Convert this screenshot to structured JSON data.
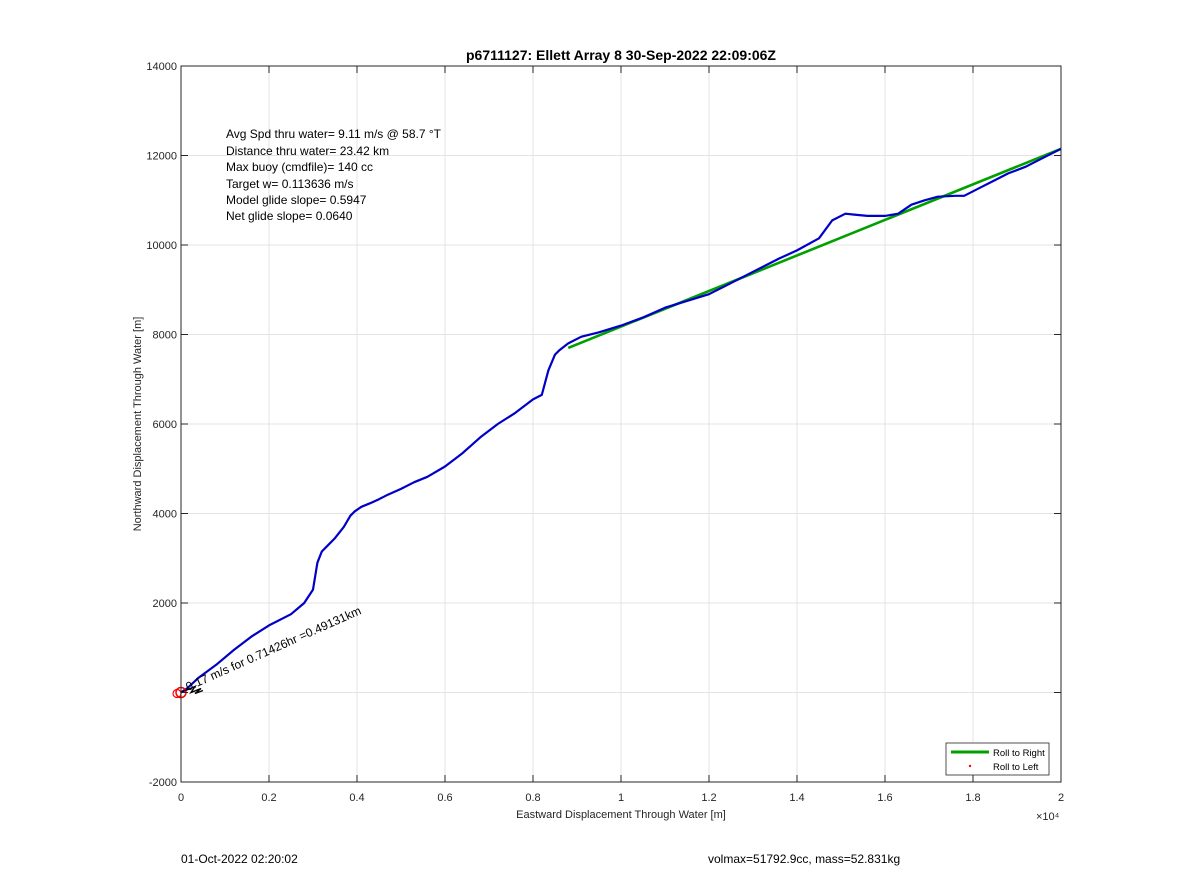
{
  "chart_data": {
    "type": "line",
    "title": "p6711127: Ellett Array 8 30-Sep-2022 22:09:06Z",
    "xlabel": "Eastward Displacement Through Water [m]",
    "ylabel": "Northward Displacement Through Water [m]",
    "x_multiplier": "×10⁴",
    "xlim": [
      0,
      20000
    ],
    "ylim": [
      -2000,
      14000
    ],
    "xticks": [
      0,
      2000,
      4000,
      6000,
      8000,
      10000,
      12000,
      14000,
      16000,
      18000,
      20000
    ],
    "xtick_labels": [
      "0",
      "0.2",
      "0.4",
      "0.6",
      "0.8",
      "1",
      "1.2",
      "1.4",
      "1.6",
      "1.8",
      "2"
    ],
    "yticks": [
      -2000,
      0,
      2000,
      4000,
      6000,
      8000,
      10000,
      12000,
      14000
    ],
    "ytick_labels": [
      "-2000",
      "",
      "2000",
      "4000",
      "6000",
      "8000",
      "10000",
      "12000",
      "14000"
    ],
    "grid": true,
    "legend_position": "bottom-right",
    "series": [
      {
        "name": "Roll to Right",
        "color": "#00a000",
        "style": "line",
        "x": [
          8800,
          20000
        ],
        "y": [
          7700,
          12150
        ]
      },
      {
        "name": "Roll to Left",
        "color": "#ff0000",
        "style": "marker",
        "x": [],
        "y": []
      },
      {
        "color": "#0000c8",
        "style": "line",
        "x": [
          0,
          150,
          400,
          800,
          1200,
          1600,
          2000,
          2500,
          2800,
          3000,
          3100,
          3200,
          3350,
          3500,
          3700,
          3850,
          3950,
          4100,
          4300,
          4500,
          4700,
          5000,
          5300,
          5600,
          6000,
          6400,
          6800,
          7200,
          7600,
          8000,
          8200,
          8350,
          8500,
          8600,
          8800,
          9100,
          9500,
          10000,
          10500,
          11000,
          11500,
          12000,
          12400,
          12800,
          13200,
          13600,
          14000,
          14500,
          14800,
          15100,
          15300,
          15600,
          16000,
          16300,
          16600,
          16900,
          17200,
          17600,
          17800,
          18200,
          18500,
          18800,
          19200,
          19600,
          20000
        ],
        "y": [
          0,
          100,
          330,
          620,
          950,
          1250,
          1500,
          1750,
          2000,
          2300,
          2900,
          3150,
          3300,
          3450,
          3700,
          3950,
          4050,
          4150,
          4230,
          4320,
          4420,
          4550,
          4700,
          4820,
          5050,
          5350,
          5700,
          6000,
          6250,
          6550,
          6650,
          7200,
          7550,
          7650,
          7800,
          7950,
          8050,
          8200,
          8380,
          8600,
          8750,
          8900,
          9100,
          9300,
          9500,
          9700,
          9880,
          10150,
          10550,
          10700,
          10680,
          10650,
          10650,
          10700,
          10900,
          11000,
          11080,
          11100,
          11100,
          11300,
          11450,
          11600,
          11750,
          11950,
          12150
        ]
      }
    ],
    "annotations": {
      "rotated_label": "0.17 m/s for 0.71426hr =0.49131km",
      "text_box": [
        "Avg Spd thru water=  9.11 m/s @  58.7 °T",
        "Distance thru water= 23.42 km",
        "Max buoy (cmdfile)= 140 cc",
        "Target w= 0.113636 m/s",
        "Model glide slope= 0.5947",
        "Net glide slope= 0.0640"
      ]
    }
  },
  "footer": {
    "left": "01-Oct-2022 02:20:02",
    "right": "volmax=51792.9cc, mass=52.831kg"
  }
}
